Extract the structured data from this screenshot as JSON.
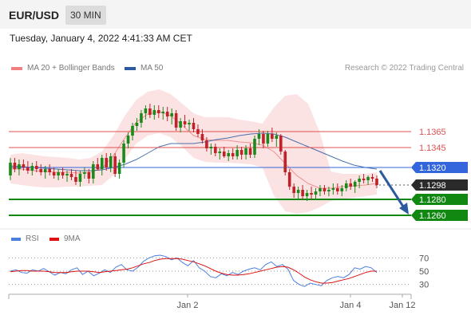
{
  "header": {
    "symbol": "EUR/USD",
    "timeframe": "30 MIN"
  },
  "datetime": "Tuesday, January 4, 2022 4:41:33 AM CET",
  "legend": {
    "bb_label": "MA 20 + Bollinger Bands",
    "ma50_label": "MA 50",
    "credit": "Research © 2022 Trading Central"
  },
  "rsi_legend": {
    "rsi_label": "RSI",
    "ma_label": "9MA"
  },
  "colors": {
    "bb": "#f08080",
    "ma50": "#2c5aa0",
    "bull": "#1a8a1a",
    "bear": "#c0222a",
    "rsi": "#4a7fdc",
    "rsi_ma": "#dd1111",
    "support": "#118811",
    "pivot": "#3366dd",
    "resistance": "#e05050",
    "arrow": "#2c5aa0"
  },
  "chart_data": [
    {
      "type": "candlestick",
      "y_range": [
        1.1245,
        1.1435
      ],
      "x_ticks": [
        "Jan 2",
        "Jan 4",
        "Jan 12"
      ],
      "levels": [
        {
          "value": 1.1365,
          "label": "1.1365",
          "kind": "resistance"
        },
        {
          "value": 1.1345,
          "label": "1.1345",
          "kind": "resistance"
        },
        {
          "value": 1.132,
          "label": "1.1320",
          "kind": "pivot"
        },
        {
          "value": 1.1298,
          "label": "1.1298",
          "kind": "last"
        },
        {
          "value": 1.128,
          "label": "1.1280",
          "kind": "support"
        },
        {
          "value": 1.126,
          "label": "1.1260",
          "kind": "support"
        }
      ],
      "ohlc": [
        [
          1.131,
          1.1332,
          1.1304,
          1.1326
        ],
        [
          1.1326,
          1.1332,
          1.1314,
          1.1318
        ],
        [
          1.1318,
          1.133,
          1.131,
          1.1324
        ],
        [
          1.1324,
          1.133,
          1.1316,
          1.132
        ],
        [
          1.132,
          1.1328,
          1.1312,
          1.1316
        ],
        [
          1.1316,
          1.1326,
          1.131,
          1.1322
        ],
        [
          1.1322,
          1.1328,
          1.1314,
          1.1318
        ],
        [
          1.1318,
          1.1324,
          1.131,
          1.1314
        ],
        [
          1.1314,
          1.1322,
          1.1306,
          1.1318
        ],
        [
          1.1318,
          1.1324,
          1.131,
          1.1314
        ],
        [
          1.1314,
          1.132,
          1.1306,
          1.131
        ],
        [
          1.131,
          1.1318,
          1.1304,
          1.1314
        ],
        [
          1.1314,
          1.132,
          1.1306,
          1.131
        ],
        [
          1.131,
          1.1316,
          1.1302,
          1.1312
        ],
        [
          1.1312,
          1.1318,
          1.1304,
          1.1308
        ],
        [
          1.1308,
          1.1316,
          1.1298,
          1.1302
        ],
        [
          1.1302,
          1.1316,
          1.1296,
          1.1312
        ],
        [
          1.1312,
          1.132,
          1.1306,
          1.1314
        ],
        [
          1.1314,
          1.1318,
          1.13,
          1.1306
        ],
        [
          1.1306,
          1.1328,
          1.13,
          1.1324
        ],
        [
          1.1324,
          1.1332,
          1.1316,
          1.1318
        ],
        [
          1.1318,
          1.1336,
          1.131,
          1.1332
        ],
        [
          1.1332,
          1.1338,
          1.1316,
          1.132
        ],
        [
          1.132,
          1.1338,
          1.1314,
          1.1334
        ],
        [
          1.1334,
          1.1338,
          1.1308,
          1.1312
        ],
        [
          1.1312,
          1.133,
          1.1306,
          1.1326
        ],
        [
          1.1326,
          1.1354,
          1.132,
          1.135
        ],
        [
          1.135,
          1.1364,
          1.1344,
          1.136
        ],
        [
          1.136,
          1.1376,
          1.1354,
          1.1372
        ],
        [
          1.1372,
          1.1382,
          1.1366,
          1.1376
        ],
        [
          1.1376,
          1.1392,
          1.137,
          1.1388
        ],
        [
          1.1388,
          1.1398,
          1.138,
          1.1394
        ],
        [
          1.1394,
          1.14,
          1.1382,
          1.1386
        ],
        [
          1.1386,
          1.1398,
          1.138,
          1.1392
        ],
        [
          1.1392,
          1.1398,
          1.1382,
          1.1388
        ],
        [
          1.1388,
          1.1396,
          1.138,
          1.139
        ],
        [
          1.139,
          1.1396,
          1.1378,
          1.1384
        ],
        [
          1.1384,
          1.1394,
          1.1374,
          1.1388
        ],
        [
          1.1388,
          1.1392,
          1.1366,
          1.137
        ],
        [
          1.137,
          1.1382,
          1.1364,
          1.1378
        ],
        [
          1.1378,
          1.1386,
          1.137,
          1.1374
        ],
        [
          1.1374,
          1.138,
          1.1366,
          1.1376
        ],
        [
          1.1376,
          1.1382,
          1.1364,
          1.1368
        ],
        [
          1.1368,
          1.1374,
          1.1358,
          1.1362
        ],
        [
          1.1362,
          1.1368,
          1.135,
          1.1354
        ],
        [
          1.1354,
          1.1358,
          1.134,
          1.1344
        ],
        [
          1.1344,
          1.135,
          1.1336,
          1.1346
        ],
        [
          1.1346,
          1.135,
          1.1334,
          1.1338
        ],
        [
          1.1338,
          1.1344,
          1.133,
          1.134
        ],
        [
          1.134,
          1.1346,
          1.1332,
          1.1334
        ],
        [
          1.1334,
          1.1342,
          1.1328,
          1.1338
        ],
        [
          1.1338,
          1.1344,
          1.133,
          1.1334
        ],
        [
          1.1334,
          1.1348,
          1.133,
          1.1342
        ],
        [
          1.1342,
          1.1346,
          1.133,
          1.1336
        ],
        [
          1.1336,
          1.1348,
          1.133,
          1.1344
        ],
        [
          1.1344,
          1.135,
          1.1332,
          1.1336
        ],
        [
          1.1336,
          1.136,
          1.1332,
          1.1356
        ],
        [
          1.1356,
          1.1368,
          1.1348,
          1.1362
        ],
        [
          1.1362,
          1.1366,
          1.1344,
          1.135
        ],
        [
          1.135,
          1.1366,
          1.1346,
          1.1362
        ],
        [
          1.1362,
          1.137,
          1.1352,
          1.1356
        ],
        [
          1.1356,
          1.1364,
          1.1346,
          1.136
        ],
        [
          1.136,
          1.1362,
          1.1336,
          1.134
        ],
        [
          1.134,
          1.1342,
          1.131,
          1.1314
        ],
        [
          1.1314,
          1.1318,
          1.1292,
          1.1296
        ],
        [
          1.1296,
          1.13,
          1.1282,
          1.1288
        ],
        [
          1.1288,
          1.1296,
          1.128,
          1.1292
        ],
        [
          1.1292,
          1.1298,
          1.128,
          1.1284
        ],
        [
          1.1284,
          1.1292,
          1.1278,
          1.1288
        ],
        [
          1.1288,
          1.1296,
          1.128,
          1.1286
        ],
        [
          1.1286,
          1.1294,
          1.128,
          1.129
        ],
        [
          1.129,
          1.1298,
          1.1284,
          1.1294
        ],
        [
          1.1294,
          1.1298,
          1.1286,
          1.129
        ],
        [
          1.129,
          1.1296,
          1.1284,
          1.1292
        ],
        [
          1.1292,
          1.13,
          1.1286,
          1.1294
        ],
        [
          1.1294,
          1.13,
          1.1286,
          1.129
        ],
        [
          1.129,
          1.1298,
          1.1284,
          1.1294
        ],
        [
          1.1294,
          1.1304,
          1.129,
          1.13
        ],
        [
          1.13,
          1.1306,
          1.1292,
          1.1296
        ],
        [
          1.1296,
          1.1304,
          1.1288,
          1.1302
        ],
        [
          1.1302,
          1.131,
          1.1294,
          1.1306
        ],
        [
          1.1306,
          1.1312,
          1.13,
          1.1304
        ],
        [
          1.1304,
          1.131,
          1.1298,
          1.1308
        ],
        [
          1.1308,
          1.1312,
          1.1302,
          1.1306
        ],
        [
          1.1306,
          1.131,
          1.1294,
          1.1298
        ]
      ],
      "bb_upper": [
        1.1336,
        1.1338,
        1.1336,
        1.1334,
        1.1333,
        1.1332,
        1.133,
        1.1332,
        1.134,
        1.136,
        1.1385,
        1.1405,
        1.1415,
        1.1418,
        1.1412,
        1.14,
        1.1388,
        1.1383,
        1.1383,
        1.1383,
        1.138,
        1.1378,
        1.1375,
        1.1395,
        1.141,
        1.1412,
        1.14,
        1.1365,
        1.1315,
        1.1312,
        1.1312,
        1.1312,
        1.1314
      ],
      "bb_lower": [
        1.13,
        1.1298,
        1.1296,
        1.1295,
        1.1295,
        1.1296,
        1.1296,
        1.1297,
        1.1298,
        1.131,
        1.133,
        1.135,
        1.136,
        1.1363,
        1.1358,
        1.1346,
        1.1332,
        1.1327,
        1.1326,
        1.1326,
        1.1325,
        1.1324,
        1.132,
        1.1285,
        1.1265,
        1.1262,
        1.1264,
        1.127,
        1.1278,
        1.128,
        1.1282,
        1.1284,
        1.1286
      ],
      "ma20": [
        1.1318,
        1.1318,
        1.1316,
        1.1315,
        1.1314,
        1.1314,
        1.1313,
        1.1314,
        1.1319,
        1.1335,
        1.1357,
        1.1377,
        1.1387,
        1.139,
        1.1385,
        1.1373,
        1.136,
        1.1355,
        1.1354,
        1.1354,
        1.1352,
        1.1351,
        1.1348,
        1.134,
        1.1325,
        1.131,
        1.13,
        1.1294,
        1.1294,
        1.1296,
        1.1297,
        1.1298,
        1.13
      ],
      "ma50": [
        1.1322,
        1.1321,
        1.132,
        1.1319,
        1.1318,
        1.1317,
        1.1316,
        1.1316,
        1.1317,
        1.132,
        1.1324,
        1.133,
        1.1338,
        1.1346,
        1.135,
        1.135,
        1.135,
        1.1352,
        1.1355,
        1.1357,
        1.136,
        1.1362,
        1.1363,
        1.1362,
        1.1358,
        1.1352,
        1.1346,
        1.134,
        1.1334,
        1.1328,
        1.1323,
        1.132,
        1.1318
      ]
    },
    {
      "type": "line",
      "y_ticks": [
        70,
        50,
        30
      ],
      "y_range": [
        20,
        80
      ],
      "series": [
        {
          "name": "RSI",
          "values": [
            50,
            52,
            48,
            47,
            52,
            50,
            54,
            49,
            44,
            48,
            46,
            52,
            55,
            45,
            50,
            43,
            47,
            52,
            48,
            56,
            60,
            52,
            50,
            56,
            65,
            70,
            73,
            74,
            72,
            67,
            70,
            63,
            58,
            66,
            55,
            50,
            42,
            40,
            46,
            43,
            48,
            45,
            50,
            53,
            55,
            52,
            60,
            64,
            57,
            60,
            53,
            36,
            30,
            27,
            32,
            30,
            28,
            36,
            40,
            42,
            40,
            45,
            55,
            53,
            57,
            55,
            48
          ]
        },
        {
          "name": "9MA",
          "values": [
            49,
            50,
            51,
            51,
            50,
            50,
            50,
            49,
            48,
            48,
            48,
            49,
            50,
            50,
            50,
            49,
            48,
            49,
            50,
            51,
            52,
            53,
            55,
            58,
            61,
            63,
            66,
            68,
            69,
            69,
            69,
            68,
            66,
            64,
            61,
            58,
            54,
            50,
            47,
            45,
            44,
            44,
            45,
            46,
            48,
            50,
            52,
            54,
            56,
            57,
            56,
            52,
            47,
            41,
            37,
            34,
            32,
            32,
            33,
            35,
            37,
            39,
            42,
            45,
            48,
            50,
            50
          ]
        }
      ]
    }
  ]
}
